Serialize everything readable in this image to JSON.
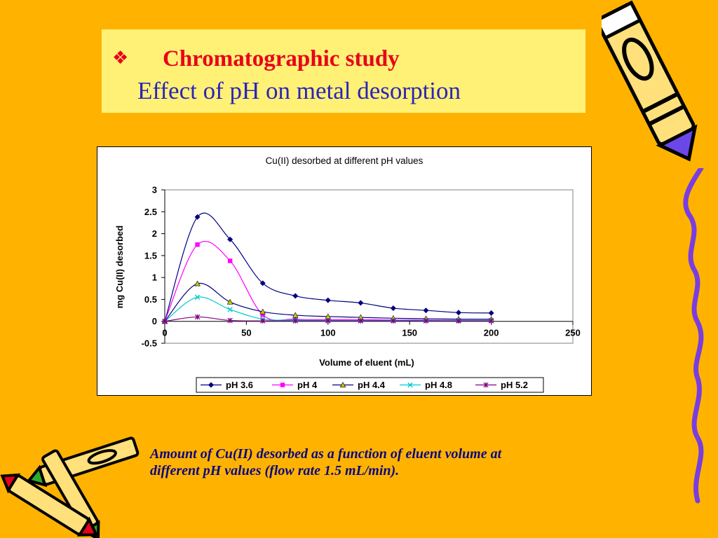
{
  "slide": {
    "bullet": "❖",
    "title": "Chromatographic study",
    "subtitle": "Effect of pH on metal desorption",
    "caption_line1": "Amount of Cu(II) desorbed as a function of eluent volume at",
    "caption_line2": "different pH values (flow rate 1.5 mL/min)."
  },
  "chart_data": {
    "type": "line",
    "title": "Cu(II) desorbed at different pH values",
    "xlabel": "Volume of eluent (mL)",
    "ylabel": "mg Cu(II) desorbed",
    "xlim": [
      0,
      250
    ],
    "ylim": [
      -0.5,
      3
    ],
    "xticks": [
      0,
      50,
      100,
      150,
      200,
      250
    ],
    "yticks": [
      -0.5,
      0,
      0.5,
      1,
      1.5,
      2,
      2.5,
      3
    ],
    "grid": false,
    "legend": "bottom",
    "x": [
      0,
      20,
      40,
      60,
      80,
      100,
      120,
      140,
      160,
      180,
      200
    ],
    "series": [
      {
        "name": "pH 3.6",
        "color": "#000080",
        "marker": "diamond",
        "values": [
          0,
          2.38,
          1.87,
          0.87,
          0.58,
          0.48,
          0.42,
          0.3,
          0.25,
          0.2,
          0.19
        ]
      },
      {
        "name": "pH 4",
        "color": "#FF00FF",
        "marker": "square",
        "values": [
          0,
          1.75,
          1.38,
          0.15,
          0.05,
          0.04,
          0.04,
          0.03,
          0.03,
          0.02,
          0.02
        ]
      },
      {
        "name": "pH 4.4",
        "color": "#000080",
        "marker": "triangle",
        "values": [
          0,
          0.86,
          0.44,
          0.22,
          0.14,
          0.11,
          0.09,
          0.07,
          0.06,
          0.05,
          0.05
        ]
      },
      {
        "name": "pH 4.8",
        "color": "#00CCCC",
        "marker": "x",
        "values": [
          0,
          0.55,
          0.27,
          0.05,
          0.03,
          0.02,
          0.02,
          0.02,
          0.02,
          0.02,
          0.02
        ]
      },
      {
        "name": "pH 5.2",
        "color": "#800080",
        "marker": "star",
        "values": [
          0,
          0.1,
          0.02,
          0.01,
          0.01,
          0.01,
          0.01,
          0.01,
          0.01,
          0.01,
          0.01
        ]
      }
    ]
  }
}
